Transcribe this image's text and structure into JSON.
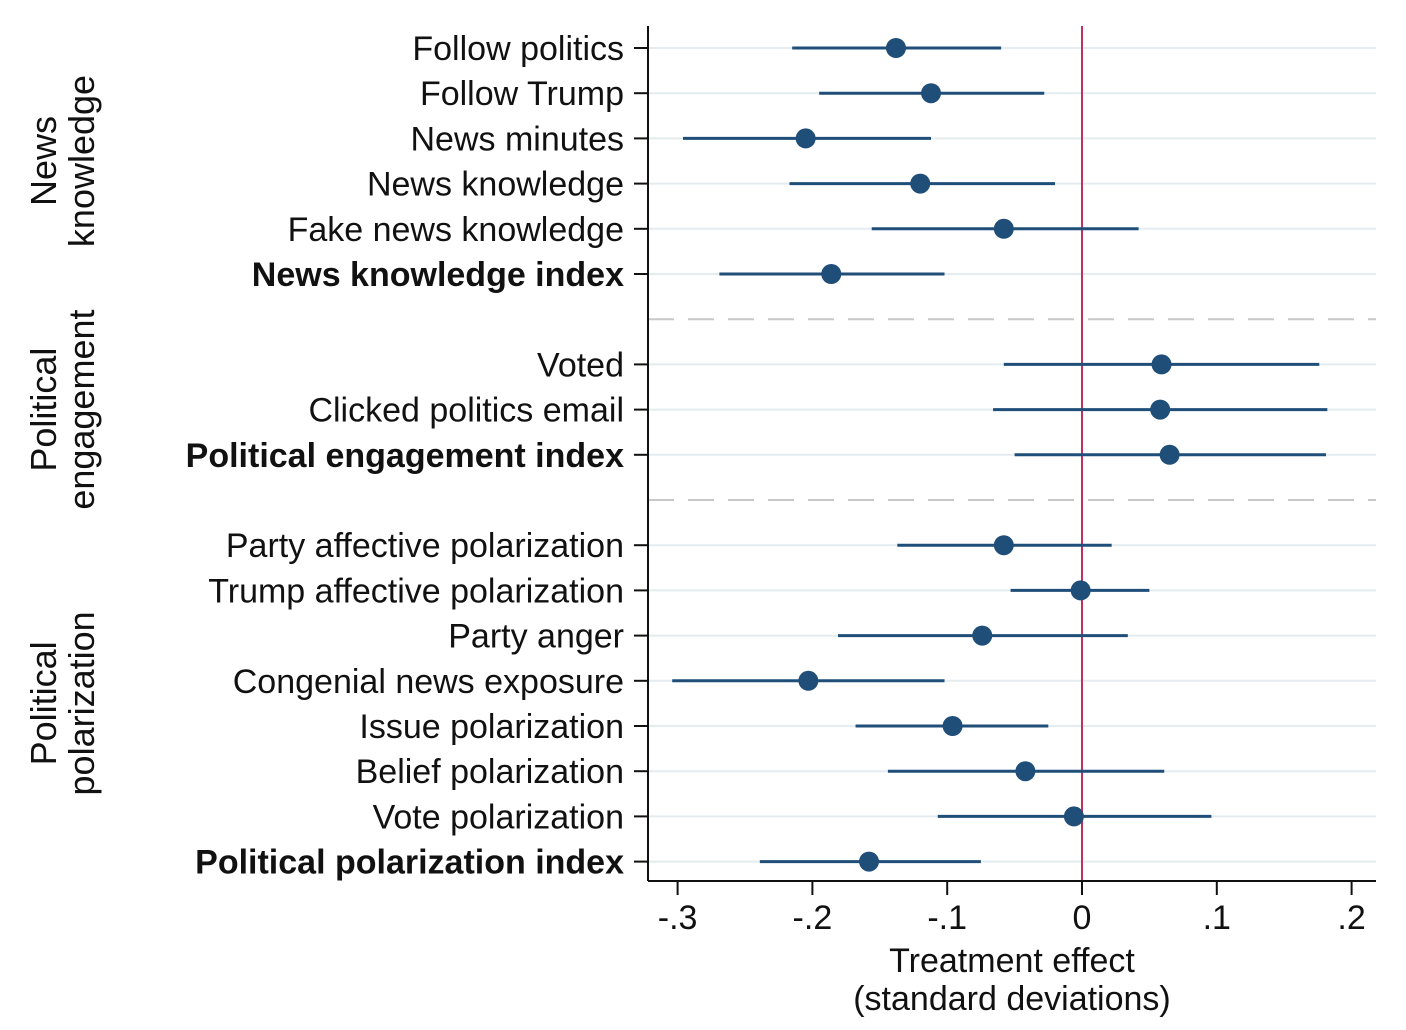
{
  "chart_data": {
    "type": "scatter",
    "xlabel": [
      "Treatment effect",
      "(standard deviations)"
    ],
    "xlim": [
      -0.322,
      0.218
    ],
    "xticks": [
      {
        "value": -0.3,
        "label": "-.3"
      },
      {
        "value": -0.2,
        "label": "-.2"
      },
      {
        "value": -0.1,
        "label": "-.1"
      },
      {
        "value": 0,
        "label": "0"
      },
      {
        "value": 0.1,
        "label": ".1"
      },
      {
        "value": 0.2,
        "label": ".2"
      }
    ],
    "reference_line": {
      "x": 0,
      "color": "#c0305a"
    },
    "marker_color": "#1f4e79",
    "grid": true,
    "groups": [
      {
        "label_lines": [
          "News",
          "knowledge"
        ],
        "rows": [
          {
            "label": "Follow politics",
            "estimate": -0.138,
            "ci_low": -0.215,
            "ci_high": -0.06,
            "bold": false
          },
          {
            "label": "Follow Trump",
            "estimate": -0.112,
            "ci_low": -0.195,
            "ci_high": -0.028,
            "bold": false
          },
          {
            "label": "News minutes",
            "estimate": -0.205,
            "ci_low": -0.296,
            "ci_high": -0.112,
            "bold": false
          },
          {
            "label": "News knowledge",
            "estimate": -0.12,
            "ci_low": -0.217,
            "ci_high": -0.02,
            "bold": false
          },
          {
            "label": "Fake news knowledge",
            "estimate": -0.058,
            "ci_low": -0.156,
            "ci_high": 0.042,
            "bold": false
          },
          {
            "label": "News knowledge index",
            "estimate": -0.186,
            "ci_low": -0.269,
            "ci_high": -0.102,
            "bold": true
          }
        ]
      },
      {
        "label_lines": [
          "Political",
          "engagement"
        ],
        "rows": [
          {
            "label": "Voted",
            "estimate": 0.059,
            "ci_low": -0.058,
            "ci_high": 0.176,
            "bold": false
          },
          {
            "label": "Clicked politics email",
            "estimate": 0.058,
            "ci_low": -0.066,
            "ci_high": 0.182,
            "bold": false
          },
          {
            "label": "Political engagement index",
            "estimate": 0.065,
            "ci_low": -0.05,
            "ci_high": 0.181,
            "bold": true
          }
        ]
      },
      {
        "label_lines": [
          "Political",
          "polarization"
        ],
        "rows": [
          {
            "label": "Party affective polarization",
            "estimate": -0.058,
            "ci_low": -0.137,
            "ci_high": 0.022,
            "bold": false
          },
          {
            "label": "Trump affective polarization",
            "estimate": -0.001,
            "ci_low": -0.053,
            "ci_high": 0.05,
            "bold": false
          },
          {
            "label": "Party anger",
            "estimate": -0.074,
            "ci_low": -0.181,
            "ci_high": 0.034,
            "bold": false
          },
          {
            "label": "Congenial news exposure",
            "estimate": -0.203,
            "ci_low": -0.304,
            "ci_high": -0.102,
            "bold": false
          },
          {
            "label": "Issue polarization",
            "estimate": -0.096,
            "ci_low": -0.168,
            "ci_high": -0.025,
            "bold": false
          },
          {
            "label": "Belief polarization",
            "estimate": -0.042,
            "ci_low": -0.144,
            "ci_high": 0.061,
            "bold": false
          },
          {
            "label": "Vote polarization",
            "estimate": -0.006,
            "ci_low": -0.107,
            "ci_high": 0.096,
            "bold": false
          },
          {
            "label": "Political polarization index",
            "estimate": -0.158,
            "ci_low": -0.239,
            "ci_high": -0.075,
            "bold": true
          }
        ]
      }
    ]
  }
}
